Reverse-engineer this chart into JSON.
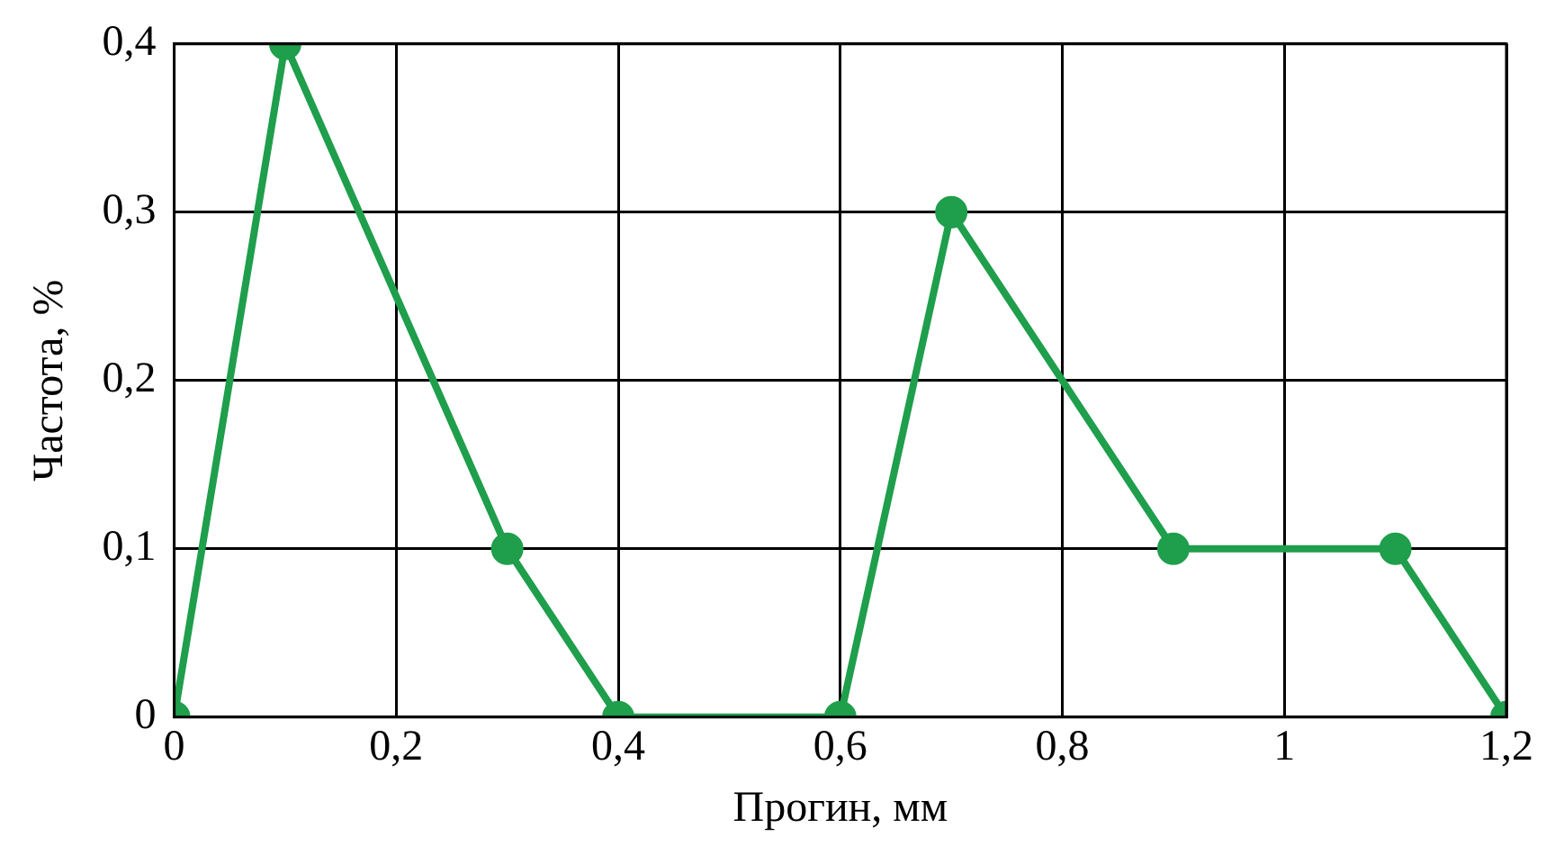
{
  "chart_data": {
    "type": "line",
    "xlabel": "Прогин, мм",
    "ylabel": "Частота, %",
    "x": [
      0,
      0.1,
      0.3,
      0.4,
      0.6,
      0.7,
      0.9,
      1.1,
      1.2
    ],
    "series": [
      {
        "color": "#1f9e4c",
        "values": [
          0,
          0.4,
          0.1,
          0,
          0,
          0.3,
          0.1,
          0.1,
          0
        ]
      }
    ],
    "xlim": [
      0,
      1.2
    ],
    "xticks": [
      0,
      {
        "value": 0.2,
        "label": "0,2"
      },
      {
        "value": 0.4,
        "label": "0,4"
      },
      {
        "value": 0.6,
        "label": "0,6"
      },
      {
        "value": 0.8,
        "label": "0,8"
      },
      1,
      {
        "value": 1.2,
        "label": "1,2"
      }
    ],
    "ylim": [
      0,
      0.4
    ],
    "yticks": [
      0,
      {
        "value": 0.1,
        "label": "0,1"
      },
      {
        "value": 0.2,
        "label": "0,2"
      },
      {
        "value": 0.3,
        "label": "0,3"
      },
      {
        "value": 0.4,
        "label": "0,4"
      }
    ],
    "grid": true,
    "legend": false,
    "marker": "circle",
    "line_style": "solid"
  }
}
